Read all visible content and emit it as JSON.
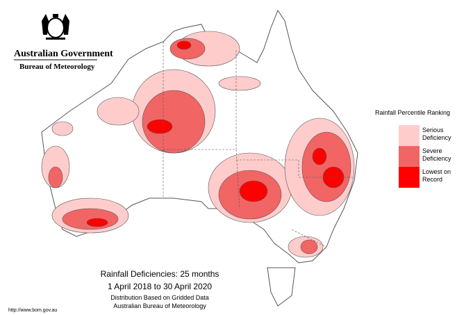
{
  "header": {
    "title": "Australian Government",
    "subtitle": "Bureau of Meteorology"
  },
  "legend": {
    "title": "Rainfall Percentile Ranking",
    "items": [
      {
        "label": "Serious Deficiency",
        "color": "#ffcccc"
      },
      {
        "label": "Severe Deficiency",
        "color": "#f26565"
      },
      {
        "label": "Lowest on Record",
        "color": "#ff0000"
      }
    ]
  },
  "caption": {
    "title": "Rainfall Deficiencies: 25 months",
    "period": "1 April 2018 to 30 April 2020",
    "note1": "Distribution Based on Gridded Data",
    "note2": "Australian Bureau of Meteorology"
  },
  "footer": {
    "url": "http://www.bom.gov.au"
  }
}
